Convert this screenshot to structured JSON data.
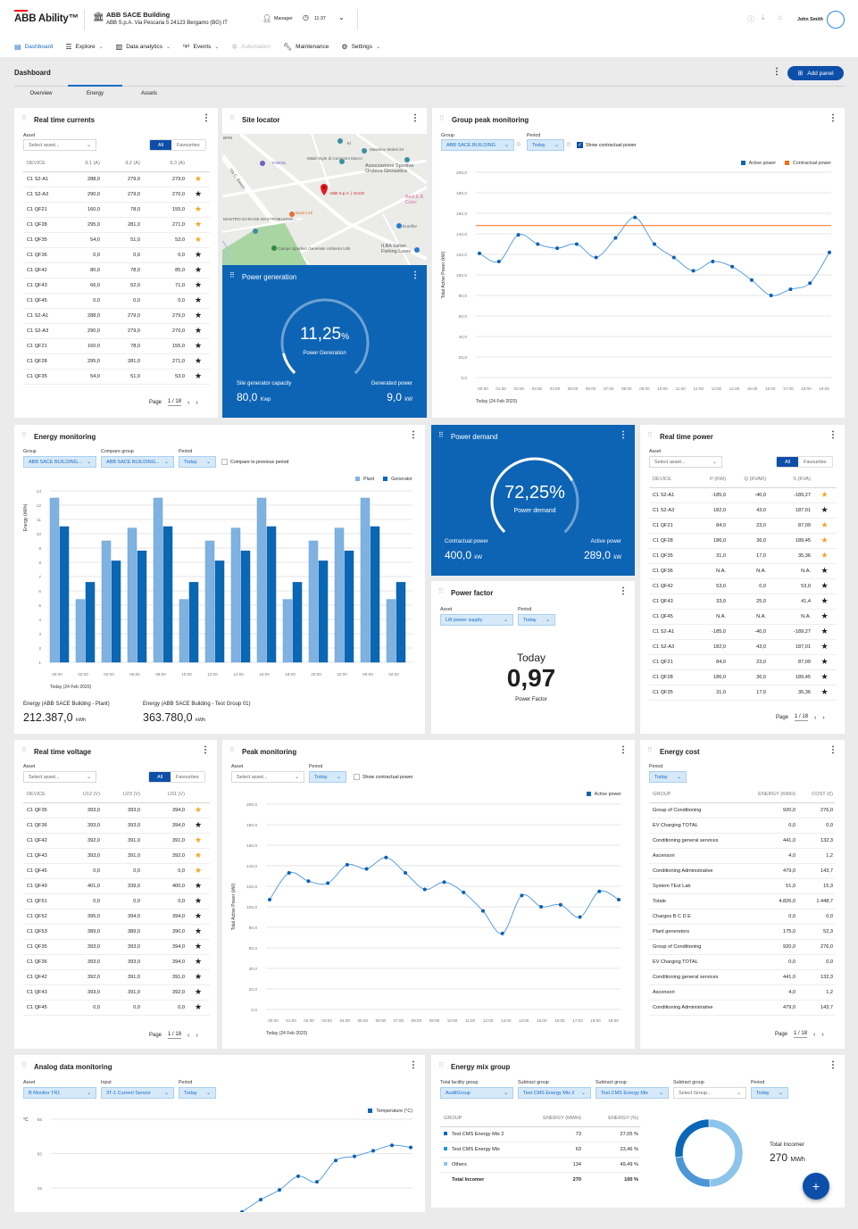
{
  "header": {
    "logo": "ABB Ability™",
    "building_name": "ABB SACE Building",
    "building_address": "ABB S.p.A. Via Pescaria 5 24123 Bergamo (BG) IT",
    "role": "Manager",
    "time": "11:37",
    "user": "John Smith"
  },
  "nav": [
    {
      "label": "Dashboard",
      "icon": "dashboard-icon",
      "active": true
    },
    {
      "label": "Explore",
      "icon": "explore-icon",
      "dropdown": true
    },
    {
      "label": "Data analytics",
      "icon": "bar-chart-icon",
      "dropdown": true
    },
    {
      "label": "Events",
      "icon": "events-icon",
      "dropdown": true
    },
    {
      "label": "Automation",
      "icon": "automation-icon",
      "disabled": true
    },
    {
      "label": "Maintenance",
      "icon": "wrench-icon"
    },
    {
      "label": "Settings",
      "icon": "gear-icon",
      "dropdown": true
    }
  ],
  "page": {
    "title": "Dashboard",
    "add_panel": "Add panel",
    "tabs": [
      "Overview",
      "Energy",
      "Assets"
    ],
    "active_tab": "Energy"
  },
  "colors": {
    "accent": "#1a6dc9",
    "tile_blue": "#0d64b5",
    "active_power": "#0d64b5",
    "contractual_power": "#ff6a1a",
    "plant": "#7fb2e0",
    "generator": "#0a67b6",
    "star": "#f5a623"
  },
  "panels": {
    "currents": {
      "title": "Real time currents",
      "asset_label": "Asset",
      "asset_placeholder": "Select asset...",
      "all": "All",
      "favourites": "Favourites",
      "columns": [
        "DEVICE",
        "IL1 (A)",
        "IL2 (A)",
        "IL3 (A)"
      ],
      "rows": [
        [
          "C1 S2-A1",
          "288,0",
          "279,0",
          "279,0",
          true
        ],
        [
          "C1 S2-A3",
          "290,0",
          "279,0",
          "270,0",
          false
        ],
        [
          "C1 QF21",
          "160,0",
          "78,0",
          "155,0",
          true
        ],
        [
          "C1 QF28",
          "295,0",
          "281,0",
          "271,0",
          true
        ],
        [
          "C1 QF35",
          "54,0",
          "51,0",
          "53,0",
          true
        ],
        [
          "C1 QF36",
          "0,0",
          "0,0",
          "0,0",
          false
        ],
        [
          "C1 QF42",
          "80,0",
          "78,0",
          "85,0",
          false
        ],
        [
          "C1 QF43",
          "66,0",
          "52,0",
          "71,0",
          false
        ],
        [
          "C1 QF45",
          "0,0",
          "0,0",
          "0,0",
          false
        ],
        [
          "C1 S2-A1",
          "288,0",
          "279,0",
          "279,0",
          false
        ],
        [
          "C1 S2-A3",
          "290,0",
          "279,0",
          "270,0",
          false
        ],
        [
          "C1 QF21",
          "160,0",
          "78,0",
          "155,0",
          false
        ],
        [
          "C1 QF28",
          "295,0",
          "281,0",
          "271,0",
          false
        ],
        [
          "C1 QF35",
          "54,0",
          "51,0",
          "53,0",
          false
        ]
      ],
      "page_label": "Page",
      "page_value": "1 / 18"
    },
    "site_locator": {
      "title": "Site locator",
      "map_labels": [
        "ABB S.p.A. | SACE",
        "TAMOIL",
        "M&M Style di Consonni Marco",
        "Massimo Moleri Dr",
        "Associazione Sportiva Orobica Ginnastica",
        "Baioni 45",
        "MASTRO GARAGE MASTROBUONO...",
        "Euroflor",
        "Campo Sportivo Generale Umberto Utili",
        "ILBA Italian Fishing Lures",
        "Bed & B Conc",
        "Ki",
        "Via C. Baioni",
        "BPM"
      ]
    },
    "power_generation": {
      "title": "Power generation",
      "percent": "11,25",
      "percent_unit": "%",
      "percent_value": 11.25,
      "label": "Power Generation",
      "capacity_label": "Site generator capacity",
      "capacity": "80,0",
      "capacity_unit": "Kwp",
      "generated_label": "Generated power",
      "generated": "9,0",
      "generated_unit": "kW"
    },
    "group_peak": {
      "title": "Group peak monitoring",
      "group_label": "Group",
      "group": "ABB SACE BUILDING",
      "period_label": "Period",
      "period": "Today",
      "show_contractual": "Show contractual power",
      "show_contractual_checked": true
    },
    "energy_monitoring": {
      "title": "Energy monitoring",
      "group_label": "Group",
      "group": "ABB SACE BUILDING...",
      "compare_label": "Compare group",
      "compare": "ABB SACE BUILDING...",
      "period_label": "Period",
      "period": "Today",
      "compare_prev": "Compare to previous period",
      "compare_prev_checked": false,
      "total1_label": "Energy (ABB SACE Building - Plant)",
      "total1": "212.387,0",
      "total1_unit": "kWh",
      "total2_label": "Energy (ABB SACE Building - Test Group 01)",
      "total2": "363.780,0",
      "total2_unit": "kWh"
    },
    "power_demand": {
      "title": "Power demand",
      "percent": "72,25%",
      "percent_value": 72.25,
      "label": "Power demand",
      "contractual_label": "Contractual power",
      "contractual": "400,0",
      "contractual_unit": "kW",
      "active_label": "Active power",
      "active": "289,0",
      "active_unit": "kW"
    },
    "power_factor": {
      "title": "Power factor",
      "asset_label": "Asset",
      "asset": "Lift power supply",
      "period_label": "Period",
      "period": "Today",
      "period_heading": "Today",
      "value": "0,97",
      "label": "Power Factor"
    },
    "power": {
      "title": "Real time power",
      "asset_label": "Asset",
      "asset_placeholder": "Select asset...",
      "all": "All",
      "favourites": "Favourites",
      "columns": [
        "DEVICE",
        "P (KW)",
        "Q (KVAR)",
        "S (KVA)"
      ],
      "rows": [
        [
          "C1 S2-A1",
          "-185,0",
          "-40,0",
          "-189,27",
          true
        ],
        [
          "C1 S2-A3",
          "182,0",
          "43,0",
          "187,01",
          false
        ],
        [
          "C1 QF21",
          "84,0",
          "23,0",
          "87,09",
          true
        ],
        [
          "C1 QF28",
          "186,0",
          "36,0",
          "189,45",
          true
        ],
        [
          "C1 QF35",
          "31,0",
          "17,0",
          "35,36",
          true
        ],
        [
          "C1 QF36",
          "N.A.",
          "N.A.",
          "N.A.",
          false
        ],
        [
          "C1 QF42",
          "53,0",
          "0,0",
          "53,0",
          false
        ],
        [
          "C1 QF43",
          "33,0",
          "25,0",
          "41,4",
          false
        ],
        [
          "C1 QF45",
          "N.A.",
          "N.A.",
          "N.A.",
          false
        ],
        [
          "C1 S2-A1",
          "-185,0",
          "-40,0",
          "-189,27",
          false
        ],
        [
          "C1 S2-A3",
          "182,0",
          "43,0",
          "187,01",
          false
        ],
        [
          "C1 QF21",
          "84,0",
          "23,0",
          "87,09",
          false
        ],
        [
          "C1 QF28",
          "186,0",
          "36,0",
          "189,45",
          false
        ],
        [
          "C1 QF35",
          "31,0",
          "17,0",
          "35,36",
          false
        ]
      ],
      "page_label": "Page",
      "page_value": "1 / 18"
    },
    "voltage": {
      "title": "Real time voltage",
      "asset_label": "Asset",
      "asset_placeholder": "Select asset...",
      "all": "All",
      "favourites": "Favourites",
      "columns": [
        "DEVICE",
        "U12 (V)",
        "U23 (V)",
        "U31 (V)"
      ],
      "rows": [
        [
          "C1 QF35",
          "393,0",
          "393,0",
          "394,0",
          true
        ],
        [
          "C1 QF36",
          "393,0",
          "393,0",
          "394,0",
          false
        ],
        [
          "C1 QF42",
          "392,0",
          "391,0",
          "391,0",
          true
        ],
        [
          "C1 QF43",
          "393,0",
          "391,0",
          "392,0",
          true
        ],
        [
          "C1 QF45",
          "0,0",
          "0,0",
          "0,0",
          true
        ],
        [
          "C1 QF49",
          "401,0",
          "339,0",
          "400,0",
          false
        ],
        [
          "C1 QF51",
          "0,0",
          "0,0",
          "0,0",
          false
        ],
        [
          "C1 QF52",
          "395,0",
          "394,0",
          "394,0",
          false
        ],
        [
          "C1 QF53",
          "389,0",
          "389,0",
          "390,0",
          false
        ],
        [
          "C1 QF35",
          "393,0",
          "393,0",
          "394,0",
          false
        ],
        [
          "C1 QF36",
          "393,0",
          "393,0",
          "394,0",
          false
        ],
        [
          "C1 QF42",
          "392,0",
          "391,0",
          "391,0",
          false
        ],
        [
          "C1 QF43",
          "393,0",
          "391,0",
          "392,0",
          false
        ],
        [
          "C1 QF45",
          "0,0",
          "0,0",
          "0,0",
          false
        ]
      ],
      "page_label": "Page",
      "page_value": "1 / 18"
    },
    "peak": {
      "title": "Peak monitoring",
      "asset_label": "Asset",
      "asset_placeholder": "Select asset...",
      "period_label": "Period",
      "period": "Today",
      "show_contractual": "Show contractual power",
      "show_contractual_checked": false
    },
    "energy_cost": {
      "title": "Energy cost",
      "period_label": "Period",
      "period": "Today",
      "columns": [
        "GROUP",
        "ENERGY (KWH)",
        "COST (€)"
      ],
      "rows": [
        [
          "Group of Conditioning",
          "920,0",
          "276,0"
        ],
        [
          "EV Charging TOTAL",
          "0,0",
          "0,0"
        ],
        [
          "Conditioning general services",
          "441,0",
          "132,3"
        ],
        [
          "Ascensori",
          "4,0",
          "1,2"
        ],
        [
          "Conditioning Administrative",
          "479,0",
          "143,7"
        ],
        [
          "System TEst Lab",
          "51,0",
          "15,3"
        ],
        [
          "Totale",
          "4.826,0",
          "1.448,7"
        ],
        [
          "Charges B C D E",
          "0,0",
          "0,0"
        ],
        [
          "Plant generetors",
          "175,0",
          "52,3"
        ],
        [
          "Group of Conditioning",
          "920,0",
          "276,0"
        ],
        [
          "EV Charging TOTAL",
          "0,0",
          "0,0"
        ],
        [
          "Conditioning general services",
          "441,0",
          "132,3"
        ],
        [
          "Ascensori",
          "4,0",
          "1,2"
        ],
        [
          "Conditioning Administrative",
          "479,0",
          "143,7"
        ]
      ],
      "page_label": "Page",
      "page_value": "1 / 18"
    },
    "analog": {
      "title": "Analog data monitoring",
      "asset_label": "Asset",
      "asset": "B Monitor TR1",
      "input_label": "Input",
      "input": "3T-1 Current Sensor",
      "period_label": "Period",
      "period": "Today"
    },
    "energy_mix": {
      "title": "Energy mix group",
      "filters": [
        {
          "label": "Total facility group",
          "value": "AuditGroup"
        },
        {
          "label": "Subtract group",
          "value": "Test CMS Energy Mix 2"
        },
        {
          "label": "Subtract group",
          "value": "Test CMS Energy Mix"
        },
        {
          "label": "Subtract group",
          "value": "Select Group..."
        },
        {
          "label": "Period",
          "value": "Today"
        }
      ],
      "columns": [
        "GROUP",
        "ENERGY (MWH)",
        "ENERGY (%)"
      ],
      "rows": [
        [
          "Test CMS Energy Mix 2",
          "73",
          "27,05 %"
        ],
        [
          "Test CMS Energy Mix",
          "63",
          "23,46 %"
        ],
        [
          "Others",
          "134",
          "49,49 %"
        ]
      ],
      "total_row": [
        "Total Incomer",
        "270",
        "100 %"
      ],
      "total_label": "Total Incomer",
      "total_value": "270",
      "total_unit": "MWh"
    }
  },
  "chart_data": [
    {
      "id": "group_peak",
      "type": "line",
      "ylabel": "Total Active Power (kW)",
      "xlabel": "Today (24 Feb 2020)",
      "ylim": [
        0,
        200
      ],
      "grid": true,
      "legend": "top-right",
      "y_ticks": [
        "0,0",
        "20,0",
        "40,0",
        "60,0",
        "80,0",
        "100,0",
        "120,0",
        "140,0",
        "160,0",
        "180,0",
        "200,0"
      ],
      "x_ticks": [
        "00:00",
        "01:00",
        "02:00",
        "03:00",
        "04:00",
        "05:00",
        "06:00",
        "07:00",
        "08:00",
        "09:00",
        "10:00",
        "11:00",
        "12:00",
        "13:00",
        "14:00",
        "15:00",
        "16:00",
        "17:00",
        "18:00",
        "19:00"
      ],
      "series": [
        {
          "name": "Active power",
          "values": [
            121,
            113,
            139,
            130,
            126,
            130,
            117,
            136,
            156,
            130,
            117,
            104,
            113,
            108,
            95,
            80,
            86,
            92,
            122
          ]
        },
        {
          "name": "Contractual power",
          "constant": 148
        }
      ]
    },
    {
      "id": "energy_monitoring",
      "type": "bar",
      "ylabel": "Energy (kWh)",
      "xlabel": "Today (24 Feb 2020)",
      "ylim": [
        1,
        13
      ],
      "grid": true,
      "legend": "top-right",
      "y_ticks": [
        "1",
        "2",
        "3",
        "4",
        "5",
        "6",
        "7",
        "8",
        "9",
        "10",
        "11",
        "12",
        "13"
      ],
      "categories": [
        "00:00",
        "02:00",
        "04:00",
        "06:00",
        "08:00",
        "10:00",
        "12:00",
        "14:00",
        "16:00",
        "18:00",
        "20:00",
        "22:00",
        "00:00",
        "02:00"
      ],
      "series": [
        {
          "name": "Plant",
          "values": [
            12.5,
            5.4,
            9.5,
            10.4,
            12.5,
            5.4,
            9.5,
            10.4,
            12.5,
            5.4,
            9.5,
            10.4,
            12.5,
            5.4
          ]
        },
        {
          "name": "Generator",
          "values": [
            10.5,
            6.6,
            8.1,
            8.8,
            10.5,
            6.6,
            8.1,
            8.8,
            10.5,
            6.6,
            8.1,
            8.8,
            10.5,
            6.6
          ]
        }
      ]
    },
    {
      "id": "peak",
      "type": "line",
      "ylabel": "Total Active Power (kW)",
      "xlabel": "Today (24 Feb 2020)",
      "ylim": [
        0,
        200
      ],
      "grid": true,
      "legend": "top-right",
      "y_ticks": [
        "0,0",
        "20,0",
        "40,0",
        "60,0",
        "80,0",
        "100,0",
        "120,0",
        "140,0",
        "160,0",
        "180,0",
        "200,0"
      ],
      "x_ticks": [
        "00:00",
        "01:00",
        "02:00",
        "03:00",
        "04:00",
        "05:00",
        "06:00",
        "07:00",
        "08:00",
        "09:00",
        "10:00",
        "11:00",
        "12:00",
        "13:00",
        "14:00",
        "15:00",
        "16:00",
        "17:00",
        "18:00",
        "19:00"
      ],
      "series": [
        {
          "name": "Active power",
          "values": [
            107,
            133,
            125,
            123,
            141,
            137,
            148,
            133,
            117,
            124,
            114,
            96,
            74,
            111,
            100,
            102,
            90,
            115,
            107
          ]
        }
      ]
    },
    {
      "id": "analog",
      "type": "line",
      "ylabel": "°C",
      "legend": "top-right",
      "grid": true,
      "ylim": [
        45,
        55
      ],
      "y_ticks": [
        "45",
        "50",
        "55"
      ],
      "series": [
        {
          "name": "Temperature (°C)",
          "x": [
            10,
            11,
            12,
            13,
            14,
            15,
            16,
            17,
            18,
            19
          ],
          "values": [
            41.5,
            43.3,
            44.7,
            46.7,
            45.9,
            49.0,
            49.6,
            50.4,
            51.2,
            50.9
          ]
        }
      ]
    },
    {
      "id": "energy_mix",
      "type": "pie",
      "donut": true,
      "slices": [
        {
          "name": "Others",
          "value": 49.49,
          "color": "#8cc4ec"
        },
        {
          "name": "Test CMS Energy Mix",
          "value": 23.46,
          "color": "#4d95d6"
        },
        {
          "name": "Test CMS Energy Mix 2",
          "value": 27.05,
          "color": "#0a67b6"
        }
      ]
    }
  ]
}
